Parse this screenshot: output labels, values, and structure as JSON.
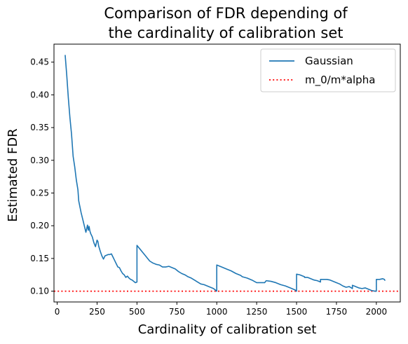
{
  "chart_data": {
    "type": "line",
    "title_line1": "Comparison of FDR depending of",
    "title_line2": "the cardinality of calibration set",
    "xlabel": "Cardinality of calibration set",
    "ylabel": "Estimated FDR",
    "xlim": [
      -20,
      2150
    ],
    "ylim": [
      0.0835,
      0.4775
    ],
    "xticks": [
      0,
      250,
      500,
      750,
      1000,
      1250,
      1500,
      1750,
      2000
    ],
    "yticks": [
      0.1,
      0.15,
      0.2,
      0.25,
      0.3,
      0.35,
      0.4,
      0.45
    ],
    "xtick_labels": [
      "0",
      "250",
      "500",
      "750",
      "1000",
      "1250",
      "1500",
      "1750",
      "2000"
    ],
    "ytick_labels": [
      "0.10",
      "0.15",
      "0.20",
      "0.25",
      "0.30",
      "0.35",
      "0.40",
      "0.45"
    ],
    "grid": false,
    "legend_position": "top-right",
    "series": [
      {
        "name": "Gaussian",
        "style": "solid",
        "color": "#1f77b4",
        "x": [
          50,
          60,
          70,
          80,
          90,
          100,
          110,
          120,
          130,
          135,
          140,
          150,
          160,
          170,
          180,
          190,
          195,
          200,
          205,
          210,
          220,
          230,
          240,
          250,
          255,
          260,
          270,
          280,
          290,
          300,
          310,
          320,
          330,
          340,
          350,
          360,
          370,
          380,
          390,
          400,
          410,
          420,
          430,
          440,
          450,
          460,
          470,
          480,
          490,
          500,
          500,
          520,
          540,
          560,
          580,
          600,
          620,
          640,
          660,
          680,
          700,
          720,
          740,
          760,
          780,
          800,
          820,
          840,
          860,
          880,
          900,
          920,
          940,
          960,
          980,
          1000,
          1000,
          1030,
          1060,
          1090,
          1120,
          1150,
          1160,
          1190,
          1220,
          1250,
          1280,
          1300,
          1310,
          1340,
          1370,
          1400,
          1430,
          1460,
          1490,
          1500,
          1500,
          1520,
          1550,
          1550,
          1570,
          1590,
          1610,
          1630,
          1650,
          1650,
          1670,
          1690,
          1710,
          1730,
          1750,
          1770,
          1790,
          1810,
          1830,
          1850,
          1850,
          1870,
          1890,
          1910,
          1930,
          1950,
          1970,
          1990,
          2000,
          2000,
          2020,
          2040,
          2050,
          2055
        ],
        "y": [
          0.461,
          0.43,
          0.395,
          0.365,
          0.34,
          0.306,
          0.29,
          0.27,
          0.255,
          0.238,
          0.232,
          0.22,
          0.21,
          0.2,
          0.19,
          0.201,
          0.193,
          0.199,
          0.192,
          0.188,
          0.183,
          0.174,
          0.168,
          0.178,
          0.176,
          0.169,
          0.161,
          0.154,
          0.149,
          0.154,
          0.155,
          0.156,
          0.156,
          0.157,
          0.152,
          0.147,
          0.142,
          0.137,
          0.136,
          0.131,
          0.127,
          0.125,
          0.121,
          0.123,
          0.12,
          0.118,
          0.117,
          0.115,
          0.113,
          0.114,
          0.17,
          0.164,
          0.158,
          0.152,
          0.146,
          0.143,
          0.141,
          0.14,
          0.137,
          0.137,
          0.138,
          0.136,
          0.134,
          0.13,
          0.127,
          0.125,
          0.122,
          0.12,
          0.117,
          0.114,
          0.111,
          0.11,
          0.108,
          0.106,
          0.104,
          0.1,
          0.14,
          0.137,
          0.134,
          0.131,
          0.127,
          0.124,
          0.122,
          0.12,
          0.117,
          0.113,
          0.113,
          0.113,
          0.116,
          0.115,
          0.113,
          0.11,
          0.108,
          0.105,
          0.102,
          0.1,
          0.126,
          0.125,
          0.122,
          0.121,
          0.121,
          0.119,
          0.117,
          0.116,
          0.114,
          0.118,
          0.118,
          0.118,
          0.117,
          0.115,
          0.113,
          0.111,
          0.108,
          0.106,
          0.107,
          0.104,
          0.109,
          0.107,
          0.105,
          0.104,
          0.105,
          0.103,
          0.101,
          0.1,
          0.1,
          0.118,
          0.118,
          0.119,
          0.118,
          0.116
        ]
      },
      {
        "name": "m_0/m*alpha",
        "style": "dotted",
        "color": "#ff0000",
        "y_constant": 0.1
      }
    ]
  }
}
